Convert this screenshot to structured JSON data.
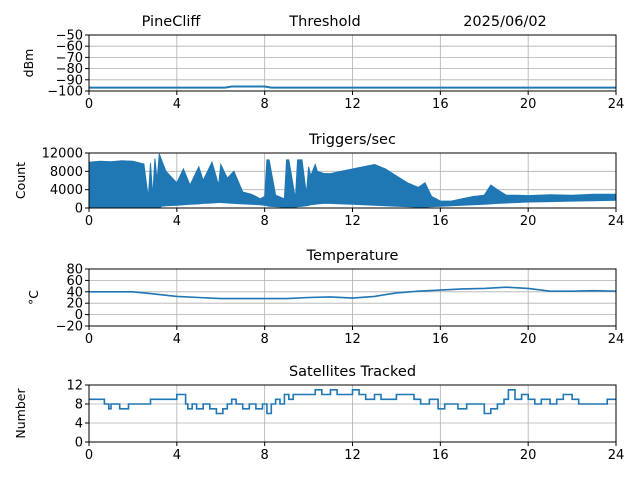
{
  "header": {
    "station": "PineCliff",
    "title": "Threshold",
    "date": "2025/06/02"
  },
  "colors": {
    "line": "#1f77b4",
    "grid": "#b0b0b0",
    "axis": "#000000"
  },
  "chart_data": [
    {
      "id": "threshold",
      "type": "line",
      "title": "",
      "ylabel": "dBm",
      "xlim": [
        0,
        24
      ],
      "ylim": [
        -100,
        -50
      ],
      "xticks": [
        0,
        4,
        8,
        12,
        16,
        20,
        24
      ],
      "yticks": [
        -100,
        -90,
        -80,
        -70,
        -60,
        -50
      ],
      "ytick_labels": [
        "−100",
        "−90",
        "−80",
        "−70",
        "−60",
        "−50"
      ],
      "grid": true,
      "x": [
        0,
        6.2,
        6.5,
        8.0,
        8.3,
        24
      ],
      "y": [
        -97,
        -97,
        -96,
        -96,
        -97,
        -97
      ]
    },
    {
      "id": "triggers",
      "type": "area",
      "title": "Triggers/sec",
      "ylabel": "Count",
      "xlim": [
        0,
        24
      ],
      "ylim": [
        0,
        12000
      ],
      "xticks": [
        0,
        4,
        8,
        12,
        16,
        20,
        24
      ],
      "yticks": [
        0,
        4000,
        8000,
        12000
      ],
      "ytick_labels": [
        "0",
        "4000",
        "8000",
        "12000"
      ],
      "grid": true,
      "x": [
        0,
        0.5,
        1,
        1.5,
        2,
        2.5,
        2.7,
        2.8,
        2.9,
        3.0,
        3.1,
        3.2,
        3.3,
        3.5,
        4.0,
        4.3,
        4.6,
        5.0,
        5.2,
        5.6,
        5.9,
        6.0,
        6.3,
        6.6,
        7.0,
        7.4,
        7.8,
        8.0,
        8.1,
        8.2,
        8.5,
        8.9,
        9.0,
        9.1,
        9.4,
        9.5,
        9.7,
        9.9,
        10.0,
        10.1,
        10.3,
        10.4,
        10.7,
        11,
        11.5,
        12,
        12.5,
        13,
        13.5,
        14,
        14.5,
        15,
        15.3,
        15.6,
        16,
        16.5,
        17,
        17.5,
        18,
        18.3,
        18.6,
        19,
        19.5,
        20,
        21,
        22,
        23,
        24
      ],
      "y": [
        10000,
        10200,
        10100,
        10300,
        10200,
        9600,
        2200,
        9800,
        2500,
        10800,
        6000,
        11800,
        10500,
        8000,
        5500,
        8500,
        5000,
        9000,
        6000,
        10000,
        5000,
        9500,
        6500,
        8000,
        3500,
        3000,
        2000,
        2500,
        10500,
        10500,
        2800,
        2000,
        10500,
        10500,
        2000,
        10500,
        10500,
        3000,
        9000,
        7000,
        9500,
        8000,
        7500,
        7500,
        8000,
        8500,
        9000,
        9500,
        8500,
        7000,
        5500,
        4500,
        5500,
        2500,
        1500,
        1500,
        2000,
        2500,
        2800,
        5000,
        4000,
        2800,
        2800,
        2700,
        2900,
        2800,
        3000,
        3000
      ],
      "y_low": [
        0,
        0,
        0,
        0,
        0,
        0,
        0,
        0,
        0,
        0,
        0,
        0,
        400,
        500,
        600,
        700,
        800,
        900,
        1000,
        1100,
        1200,
        1200,
        1100,
        1000,
        900,
        800,
        700,
        600,
        500,
        400,
        300,
        200,
        200,
        200,
        200,
        300,
        400,
        500,
        600,
        700,
        800,
        900,
        1000,
        1000,
        900,
        800,
        700,
        600,
        500,
        400,
        300,
        200,
        200,
        300,
        400,
        500,
        600,
        700,
        800,
        900,
        1000,
        1100,
        1200,
        1300,
        1400,
        1500,
        1600,
        1700
      ]
    },
    {
      "id": "temperature",
      "type": "line",
      "title": "Temperature",
      "ylabel": "°C",
      "xlim": [
        0,
        24
      ],
      "ylim": [
        -20,
        80
      ],
      "xticks": [
        0,
        4,
        8,
        12,
        16,
        20,
        24
      ],
      "yticks": [
        -20,
        0,
        20,
        40,
        60,
        80
      ],
      "ytick_labels": [
        "−20",
        "0",
        "20",
        "40",
        "60",
        "80"
      ],
      "grid": true,
      "x": [
        0,
        1,
        2,
        3,
        4,
        5,
        6,
        7,
        8,
        9,
        10,
        11,
        12,
        13,
        14,
        15,
        16,
        17,
        18,
        19,
        20,
        21,
        22,
        23,
        24
      ],
      "y": [
        40,
        40,
        40,
        36,
        32,
        30,
        28,
        28,
        28,
        28,
        30,
        31,
        29,
        32,
        38,
        41,
        43,
        45,
        46,
        48,
        46,
        41,
        41,
        42,
        41
      ]
    },
    {
      "id": "satellites",
      "type": "line",
      "title": "Satellites Tracked",
      "ylabel": "Number",
      "xlim": [
        0,
        24
      ],
      "ylim": [
        0,
        12
      ],
      "xticks": [
        0,
        4,
        8,
        12,
        16,
        20,
        24
      ],
      "yticks": [
        0,
        4,
        8,
        12
      ],
      "ytick_labels": [
        "0",
        "4",
        "8",
        "12"
      ],
      "grid": true,
      "x": [
        0,
        0.5,
        0.7,
        0.9,
        1.0,
        1.2,
        1.4,
        1.8,
        2.0,
        2.5,
        2.8,
        3.0,
        3.5,
        4.0,
        4.4,
        4.5,
        4.7,
        4.9,
        5.2,
        5.5,
        5.8,
        6.1,
        6.3,
        6.5,
        6.7,
        7.0,
        7.3,
        7.6,
        7.9,
        8.1,
        8.3,
        8.5,
        8.7,
        8.9,
        9.1,
        9.3,
        9.6,
        10.0,
        10.3,
        10.6,
        11.0,
        11.3,
        11.6,
        12.0,
        12.3,
        12.6,
        13.0,
        13.3,
        13.7,
        14.0,
        14.4,
        14.8,
        15.1,
        15.5,
        15.9,
        16.2,
        16.5,
        16.8,
        17.2,
        17.6,
        18.0,
        18.3,
        18.6,
        18.9,
        19.1,
        19.4,
        19.7,
        20.0,
        20.3,
        20.6,
        21.0,
        21.3,
        21.6,
        22.0,
        22.3,
        22.6,
        23.0,
        23.3,
        23.6,
        24
      ],
      "y": [
        9,
        9,
        8,
        7,
        8,
        8,
        7,
        8,
        8,
        8,
        9,
        9,
        9,
        10,
        8,
        7,
        8,
        7,
        8,
        7,
        6,
        7,
        8,
        9,
        8,
        7,
        8,
        7,
        8,
        6,
        8,
        9,
        8,
        10,
        9,
        10,
        10,
        10,
        11,
        10,
        11,
        10,
        10,
        11,
        10,
        9,
        10,
        9,
        9,
        10,
        10,
        9,
        8,
        9,
        7,
        8,
        8,
        7,
        8,
        8,
        6,
        7,
        8,
        9,
        11,
        9,
        10,
        9,
        8,
        9,
        8,
        9,
        10,
        9,
        8,
        8,
        8,
        8,
        9,
        9
      ]
    }
  ]
}
